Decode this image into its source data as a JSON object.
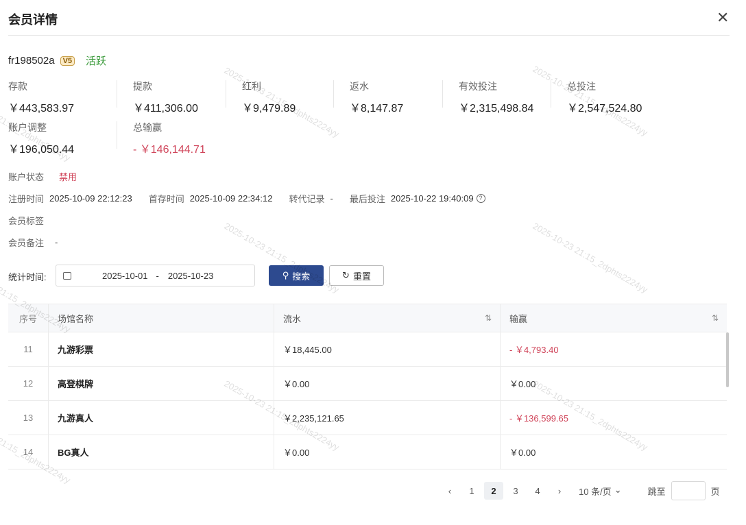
{
  "title": "会员详情",
  "close_icon": "close-icon",
  "user": {
    "name": "fr198502a",
    "vip": "V5",
    "status": "活跃"
  },
  "stats": [
    {
      "label": "存款",
      "value": "￥443,583.97"
    },
    {
      "label": "提款",
      "value": "￥411,306.00"
    },
    {
      "label": "红利",
      "value": "￥9,479.89"
    },
    {
      "label": "返水",
      "value": "￥8,147.87"
    },
    {
      "label": "有效投注",
      "value": "￥2,315,498.84"
    },
    {
      "label": "总投注",
      "value": "￥2,547,524.80"
    },
    {
      "label": "账户调整",
      "value": "￥196,050.44"
    },
    {
      "label": "总输赢",
      "value": "- ￥146,144.71"
    }
  ],
  "account_status": {
    "label": "账户状态",
    "value": "禁用"
  },
  "times": {
    "reg_label": "注册时间",
    "reg": "2025-10-09 22:12:23",
    "first_label": "首存时间",
    "first": "2025-10-09 22:34:12",
    "agent_label": "转代记录",
    "agent": "-",
    "last_label": "最后投注",
    "last": "2025-10-22 19:40:09"
  },
  "tags_label": "会员标签",
  "remark": {
    "label": "会员备注",
    "value": "-"
  },
  "filter": {
    "label": "统计时间:",
    "start": "2025-10-01",
    "sep": "-",
    "end": "2025-10-23",
    "search": "搜索",
    "reset": "重置"
  },
  "table": {
    "headers": [
      "序号",
      "场馆名称",
      "流水",
      "输赢"
    ],
    "rows": [
      {
        "no": "11",
        "name": "九游彩票",
        "flow": "￥18,445.00",
        "win": "- ￥4,793.40",
        "neg": true
      },
      {
        "no": "12",
        "name": "高登棋牌",
        "flow": "￥0.00",
        "win": "￥0.00",
        "neg": false
      },
      {
        "no": "13",
        "name": "九游真人",
        "flow": "￥2,235,121.65",
        "win": "- ￥136,599.65",
        "neg": true
      },
      {
        "no": "14",
        "name": "BG真人",
        "flow": "￥0.00",
        "win": "￥0.00",
        "neg": false
      }
    ]
  },
  "pagination": {
    "pages": [
      "1",
      "2",
      "3",
      "4"
    ],
    "current": "2",
    "page_size": "10 条/页",
    "jump_label": "跳至",
    "page_unit": "页"
  },
  "watermark": "2025-10-23 21:15_2dphts2224yy",
  "colors": {
    "primary": "#2d4a8f",
    "negative": "#d0455a",
    "active": "#3a9a3a"
  }
}
